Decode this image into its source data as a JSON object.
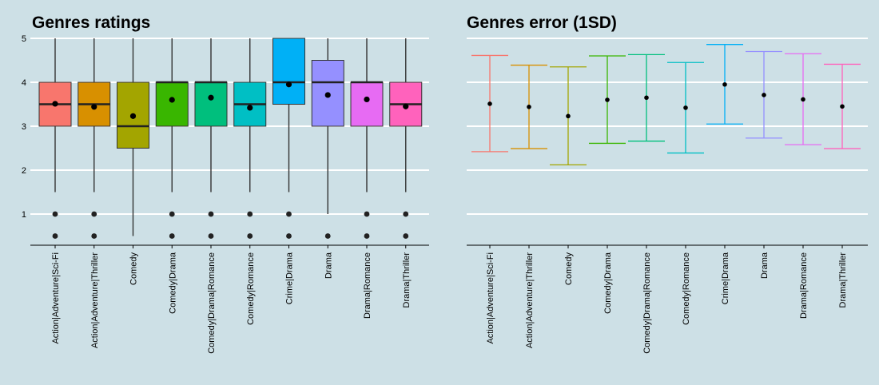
{
  "colors": {
    "background": "#cde0e6",
    "gridline": "#ffffff",
    "axis": "#000000",
    "point": "#000000"
  },
  "chart_data": [
    {
      "type": "box",
      "title": "Genres ratings",
      "xlabel": "",
      "ylabel": "",
      "ylim": [
        0.3,
        5.0
      ],
      "yticks": [
        1,
        2,
        3,
        4,
        5
      ],
      "grid": "horizontal",
      "legend": "none",
      "categories": [
        "Action|Adventure|Sci-Fi",
        "Action|Adventure|Thriller",
        "Comedy",
        "Comedy|Drama",
        "Comedy|Drama|Romance",
        "Comedy|Romance",
        "Crime|Drama",
        "Drama",
        "Drama|Romance",
        "Drama|Thriller"
      ],
      "colors": [
        "#f8766d",
        "#d89000",
        "#a3a500",
        "#39b600",
        "#00bf7d",
        "#00bfc4",
        "#00b0f6",
        "#9590ff",
        "#e76bf3",
        "#ff62bc"
      ],
      "boxes": [
        {
          "q1": 3,
          "median": 3.5,
          "q3": 4,
          "whisker_low": 1.5,
          "whisker_high": 5,
          "mean": 3.51,
          "outliers": [
            1,
            0.5
          ]
        },
        {
          "q1": 3,
          "median": 3.5,
          "q3": 4,
          "whisker_low": 1.5,
          "whisker_high": 5,
          "mean": 3.44,
          "outliers": [
            1,
            0.5
          ]
        },
        {
          "q1": 2.5,
          "median": 3,
          "q3": 4,
          "whisker_low": 0.5,
          "whisker_high": 5,
          "mean": 3.23,
          "outliers": []
        },
        {
          "q1": 3,
          "median": 4,
          "q3": 4,
          "whisker_low": 1.5,
          "whisker_high": 5,
          "mean": 3.6,
          "outliers": [
            1,
            0.5
          ]
        },
        {
          "q1": 3,
          "median": 4,
          "q3": 4,
          "whisker_low": 1.5,
          "whisker_high": 5,
          "mean": 3.65,
          "outliers": [
            1,
            0.5
          ]
        },
        {
          "q1": 3,
          "median": 3.5,
          "q3": 4,
          "whisker_low": 1.5,
          "whisker_high": 5,
          "mean": 3.42,
          "outliers": [
            1,
            0.5
          ]
        },
        {
          "q1": 3.5,
          "median": 4,
          "q3": 5,
          "whisker_low": 1.5,
          "whisker_high": 5,
          "mean": 3.95,
          "outliers": [
            1,
            0.5
          ]
        },
        {
          "q1": 3,
          "median": 4,
          "q3": 4.5,
          "whisker_low": 1,
          "whisker_high": 5,
          "mean": 3.71,
          "outliers": [
            0.5
          ]
        },
        {
          "q1": 3,
          "median": 4,
          "q3": 4,
          "whisker_low": 1.5,
          "whisker_high": 5,
          "mean": 3.61,
          "outliers": [
            1,
            0.5
          ]
        },
        {
          "q1": 3,
          "median": 3.5,
          "q3": 4,
          "whisker_low": 1.5,
          "whisker_high": 5,
          "mean": 3.45,
          "outliers": [
            1,
            0.5
          ]
        }
      ]
    },
    {
      "type": "errorbar",
      "title": "Genres error (1SD)",
      "xlabel": "",
      "ylabel": "",
      "ylim": [
        0.3,
        5.0
      ],
      "grid": "horizontal",
      "legend": "none",
      "categories": [
        "Action|Adventure|Sci-Fi",
        "Action|Adventure|Thriller",
        "Comedy",
        "Comedy|Drama",
        "Comedy|Drama|Romance",
        "Comedy|Romance",
        "Crime|Drama",
        "Drama",
        "Drama|Romance",
        "Drama|Thriller"
      ],
      "colors": [
        "#f8766d",
        "#d89000",
        "#a3a500",
        "#39b600",
        "#00bf7d",
        "#00bfc4",
        "#00b0f6",
        "#9590ff",
        "#e76bf3",
        "#ff62bc"
      ],
      "points": [
        {
          "mean": 3.51,
          "low": 2.42,
          "high": 4.61
        },
        {
          "mean": 3.44,
          "low": 2.49,
          "high": 4.39
        },
        {
          "mean": 3.23,
          "low": 2.12,
          "high": 4.35
        },
        {
          "mean": 3.6,
          "low": 2.61,
          "high": 4.6
        },
        {
          "mean": 3.65,
          "low": 2.66,
          "high": 4.63
        },
        {
          "mean": 3.42,
          "low": 2.39,
          "high": 4.45
        },
        {
          "mean": 3.95,
          "low": 3.05,
          "high": 4.86
        },
        {
          "mean": 3.71,
          "low": 2.73,
          "high": 4.7
        },
        {
          "mean": 3.61,
          "low": 2.58,
          "high": 4.65
        },
        {
          "mean": 3.45,
          "low": 2.49,
          "high": 4.41
        }
      ]
    }
  ]
}
